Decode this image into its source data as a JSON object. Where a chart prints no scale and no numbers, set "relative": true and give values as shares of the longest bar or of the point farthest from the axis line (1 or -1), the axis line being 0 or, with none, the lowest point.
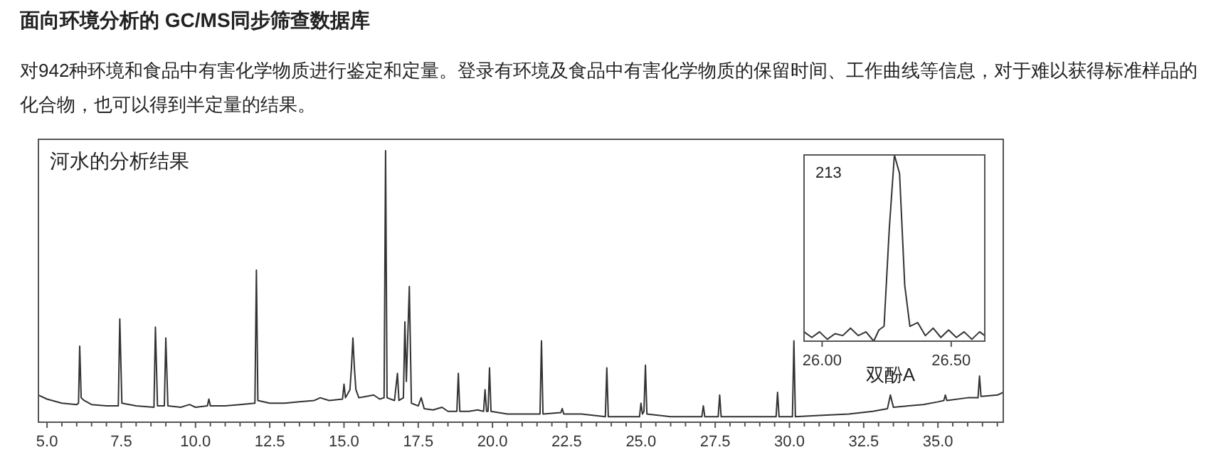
{
  "chart_data": [
    {
      "type": "line",
      "title": "面向环境分析的 GC/MS同步筛查数据库",
      "subtitle": "对942种环境和食品中有害化学物质进行鉴定和定量。登录有环境及食品中有害化学物质的保留时间、工作曲线等信息，对于难以获得标准样品的化合物，也可以得到半定量的结果。",
      "relative": true,
      "color": "#333333",
      "xlim": [
        4.71,
        37.2
      ],
      "xticks": [
        {
          "value": 5,
          "label": "5.0"
        },
        {
          "value": 5.5,
          "label": null
        },
        {
          "value": 6,
          "label": null
        },
        {
          "value": 6.5,
          "label": null
        },
        {
          "value": 7,
          "label": null
        },
        {
          "value": 7.5,
          "label": "7.5"
        },
        {
          "value": 8,
          "label": null
        },
        {
          "value": 8.5,
          "label": null
        },
        {
          "value": 9,
          "label": null
        },
        {
          "value": 9.5,
          "label": null
        },
        {
          "value": 10,
          "label": "10.0"
        },
        {
          "value": 10.5,
          "label": null
        },
        {
          "value": 11,
          "label": null
        },
        {
          "value": 11.5,
          "label": null
        },
        {
          "value": 12,
          "label": null
        },
        {
          "value": 12.5,
          "label": "12.5"
        },
        {
          "value": 13,
          "label": null
        },
        {
          "value": 13.5,
          "label": null
        },
        {
          "value": 14,
          "label": null
        },
        {
          "value": 14.5,
          "label": null
        },
        {
          "value": 15,
          "label": "15.0"
        },
        {
          "value": 15.5,
          "label": null
        },
        {
          "value": 16,
          "label": null
        },
        {
          "value": 16.5,
          "label": null
        },
        {
          "value": 17,
          "label": null
        },
        {
          "value": 17.5,
          "label": "17.5"
        },
        {
          "value": 18,
          "label": null
        },
        {
          "value": 18.5,
          "label": null
        },
        {
          "value": 19,
          "label": null
        },
        {
          "value": 19.5,
          "label": null
        },
        {
          "value": 20,
          "label": "20.0"
        },
        {
          "value": 20.5,
          "label": null
        },
        {
          "value": 21,
          "label": null
        },
        {
          "value": 21.5,
          "label": null
        },
        {
          "value": 22,
          "label": null
        },
        {
          "value": 22.5,
          "label": "22.5"
        },
        {
          "value": 23,
          "label": null
        },
        {
          "value": 23.5,
          "label": null
        },
        {
          "value": 24,
          "label": null
        },
        {
          "value": 24.5,
          "label": null
        },
        {
          "value": 25,
          "label": "25.0"
        },
        {
          "value": 25.5,
          "label": null
        },
        {
          "value": 26,
          "label": null
        },
        {
          "value": 26.5,
          "label": null
        },
        {
          "value": 27,
          "label": null
        },
        {
          "value": 27.5,
          "label": "27.5"
        },
        {
          "value": 28,
          "label": null
        },
        {
          "value": 28.5,
          "label": null
        },
        {
          "value": 29,
          "label": null
        },
        {
          "value": 29.5,
          "label": null
        },
        {
          "value": 30,
          "label": "30.0"
        },
        {
          "value": 30.5,
          "label": null
        },
        {
          "value": 31,
          "label": null
        },
        {
          "value": 31.5,
          "label": null
        },
        {
          "value": 32,
          "label": null
        },
        {
          "value": 32.5,
          "label": "32.5"
        },
        {
          "value": 33,
          "label": null
        },
        {
          "value": 33.5,
          "label": null
        },
        {
          "value": 34,
          "label": null
        },
        {
          "value": 34.5,
          "label": null
        },
        {
          "value": 35,
          "label": "35.0"
        },
        {
          "value": 35.5,
          "label": null
        },
        {
          "value": 36,
          "label": null
        },
        {
          "value": 36.5,
          "label": null
        },
        {
          "value": 37,
          "label": null
        }
      ],
      "x": [
        4.71,
        5.0,
        5.5,
        6.0,
        6.06,
        6.1,
        6.15,
        6.25,
        6.5,
        7.0,
        7.4,
        7.45,
        7.52,
        8.0,
        8.6,
        8.65,
        8.72,
        8.95,
        9.0,
        9.07,
        9.5,
        9.8,
        10.0,
        10.4,
        10.45,
        10.5,
        11.0,
        11.5,
        12.0,
        12.05,
        12.1,
        12.5,
        13.0,
        13.5,
        14.0,
        14.2,
        14.5,
        14.95,
        15.0,
        15.05,
        15.2,
        15.25,
        15.3,
        15.35,
        15.4,
        15.5,
        16.0,
        16.2,
        16.35,
        16.4,
        16.45,
        16.7,
        16.8,
        16.85,
        17.0,
        17.05,
        17.1,
        17.2,
        17.27,
        17.5,
        17.6,
        17.7,
        18.0,
        18.3,
        18.5,
        18.8,
        18.85,
        18.9,
        19.2,
        19.5,
        19.7,
        19.75,
        19.8,
        19.85,
        19.9,
        19.95,
        20.5,
        21.0,
        21.6,
        21.65,
        21.7,
        22.3,
        22.35,
        22.4,
        23.0,
        23.8,
        23.85,
        23.9,
        24.5,
        24.95,
        25.0,
        25.05,
        25.1,
        25.15,
        25.2,
        26.0,
        26.7,
        27.05,
        27.1,
        27.15,
        27.6,
        27.65,
        27.7,
        28.5,
        29.55,
        29.6,
        29.65,
        30.1,
        30.15,
        30.2,
        31.0,
        32.0,
        32.8,
        33.3,
        33.4,
        33.5,
        34.0,
        34.5,
        35.0,
        35.2,
        35.25,
        35.3,
        36.0,
        36.35,
        36.4,
        36.45,
        37.0,
        37.2
      ],
      "values": [
        0.1,
        0.085,
        0.07,
        0.065,
        0.07,
        0.28,
        0.09,
        0.08,
        0.065,
        0.06,
        0.06,
        0.38,
        0.07,
        0.06,
        0.055,
        0.35,
        0.06,
        0.06,
        0.31,
        0.06,
        0.055,
        0.065,
        0.055,
        0.06,
        0.085,
        0.06,
        0.06,
        0.065,
        0.07,
        0.56,
        0.08,
        0.07,
        0.07,
        0.075,
        0.08,
        0.09,
        0.08,
        0.085,
        0.14,
        0.09,
        0.12,
        0.2,
        0.31,
        0.2,
        0.12,
        0.09,
        0.1,
        0.085,
        0.09,
        1.0,
        0.09,
        0.08,
        0.18,
        0.08,
        0.09,
        0.37,
        0.15,
        0.5,
        0.07,
        0.06,
        0.09,
        0.05,
        0.045,
        0.055,
        0.04,
        0.04,
        0.18,
        0.04,
        0.04,
        0.045,
        0.04,
        0.12,
        0.04,
        0.04,
        0.2,
        0.04,
        0.03,
        0.03,
        0.03,
        0.3,
        0.03,
        0.035,
        0.05,
        0.03,
        0.03,
        0.02,
        0.2,
        0.02,
        0.02,
        0.02,
        0.07,
        0.03,
        0.04,
        0.21,
        0.03,
        0.02,
        0.02,
        0.02,
        0.06,
        0.02,
        0.02,
        0.1,
        0.02,
        0.02,
        0.02,
        0.11,
        0.02,
        0.02,
        0.3,
        0.02,
        0.025,
        0.03,
        0.04,
        0.05,
        0.1,
        0.055,
        0.06,
        0.065,
        0.075,
        0.08,
        0.1,
        0.08,
        0.09,
        0.09,
        0.17,
        0.095,
        0.1,
        0.11
      ],
      "annotations": [
        "河水的分析结果",
        {
          "text": "双酚A",
          "x": 33.4,
          "y": 0.1
        }
      ]
    },
    {
      "type": "line",
      "relative": true,
      "color": "#333333",
      "xlim": [
        25.93,
        26.63
      ],
      "xticks": [
        {
          "value": 26,
          "label": "26.00"
        },
        {
          "value": 26.5,
          "label": "26.50"
        }
      ],
      "x": [
        25.93,
        25.96,
        25.99,
        26.02,
        26.05,
        26.08,
        26.11,
        26.14,
        26.17,
        26.2,
        26.22,
        26.24,
        26.26,
        26.28,
        26.3,
        26.32,
        26.34,
        26.37,
        26.4,
        26.43,
        26.46,
        26.49,
        26.52,
        26.55,
        26.58,
        26.61,
        26.63
      ],
      "values": [
        0.05,
        0.02,
        0.05,
        0.01,
        0.04,
        0.03,
        0.07,
        0.03,
        0.05,
        0.0,
        0.06,
        0.08,
        0.6,
        1.0,
        0.9,
        0.3,
        0.08,
        0.1,
        0.03,
        0.07,
        0.02,
        0.06,
        0.02,
        0.05,
        0.01,
        0.05,
        0.03
      ],
      "annotations": [
        "213"
      ]
    }
  ]
}
